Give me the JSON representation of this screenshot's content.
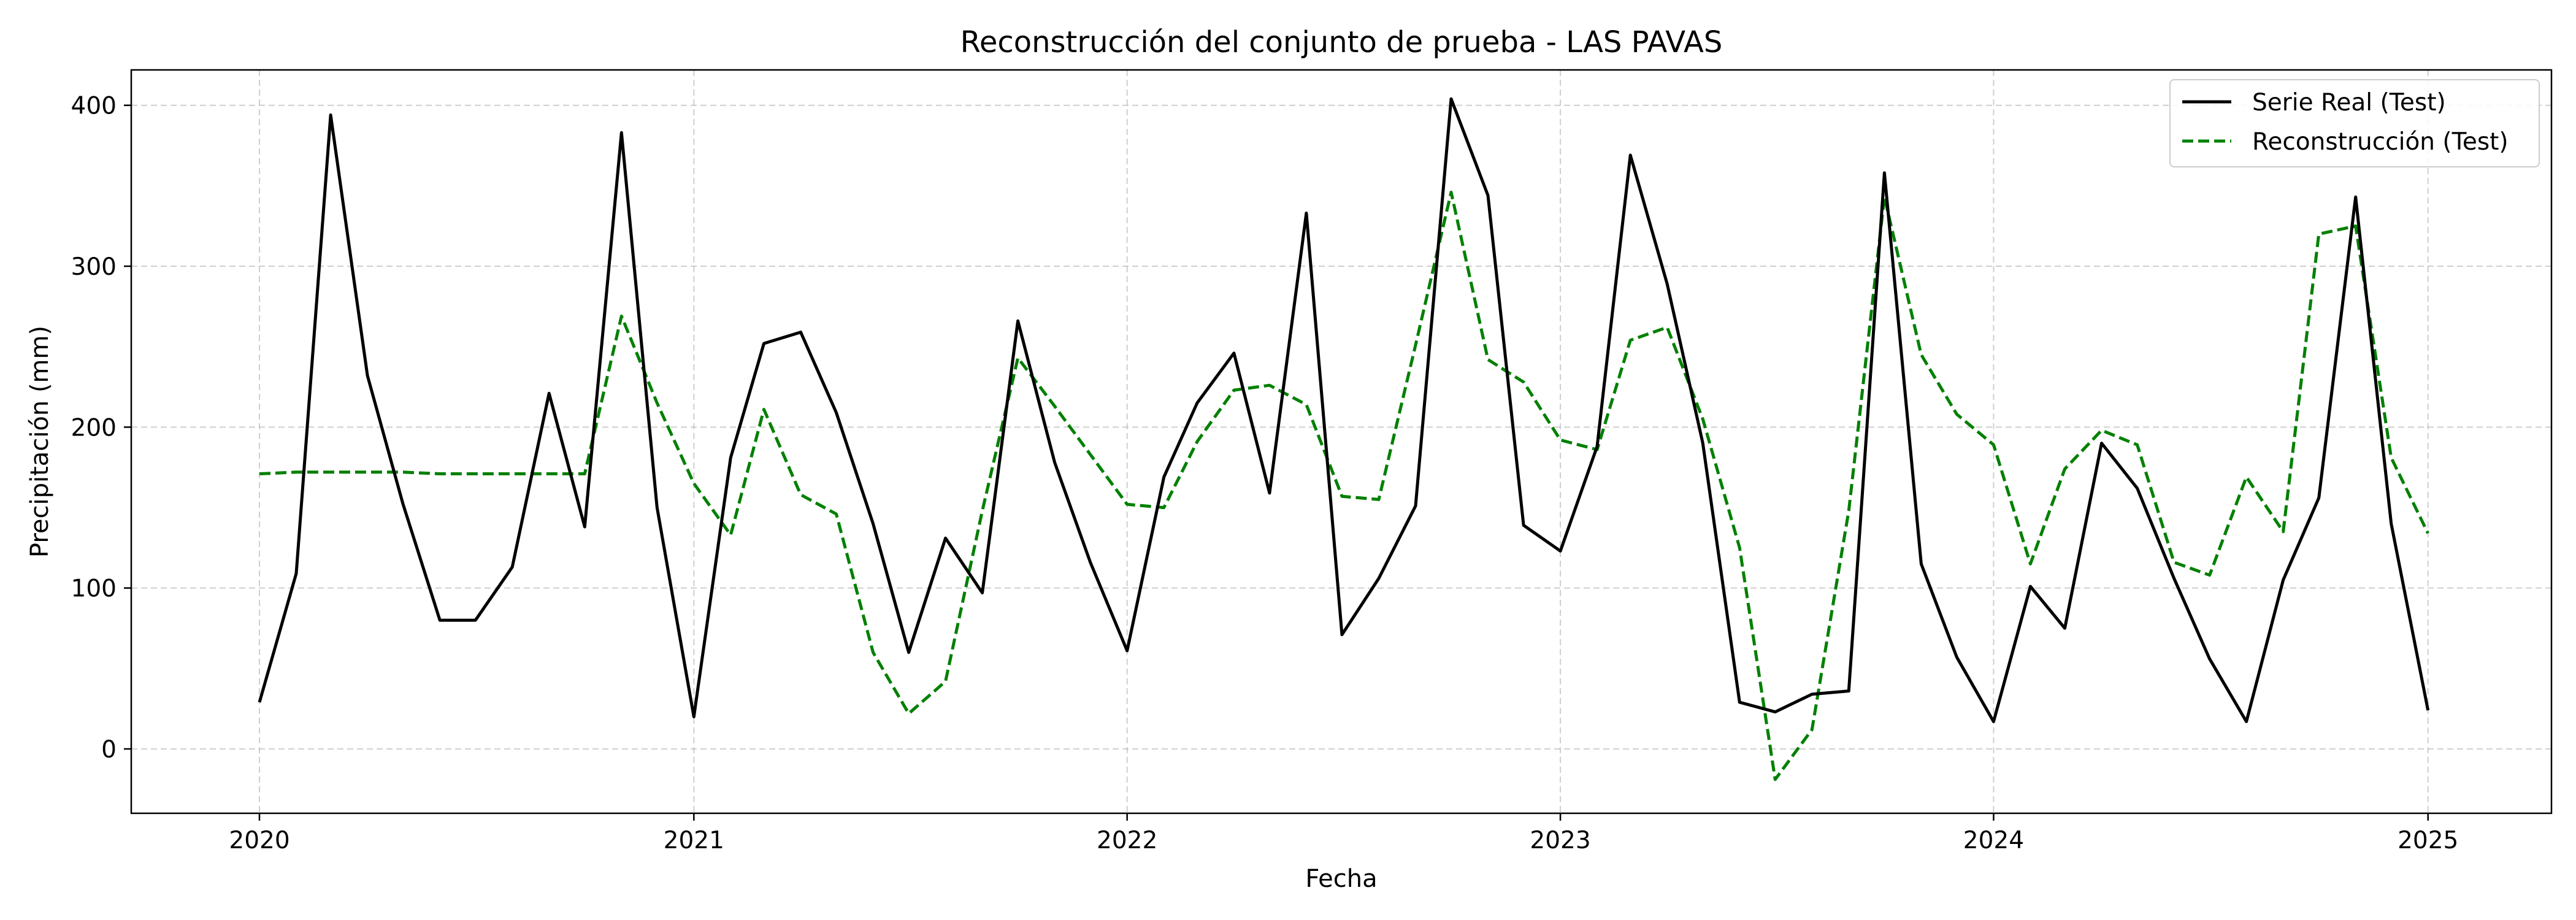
{
  "chart_data": {
    "type": "line",
    "title": "Reconstrucción del conjunto de prueba - LAS PAVAS",
    "xlabel": "Fecha",
    "ylabel": "Precipitación (mm)",
    "xlim": [
      "2019-09-15",
      "2025-04-15"
    ],
    "ylim": [
      -40,
      422
    ],
    "x_ticks": [
      {
        "date": "2020-01-01",
        "label": "2020"
      },
      {
        "date": "2021-01-01",
        "label": "2021"
      },
      {
        "date": "2022-01-01",
        "label": "2022"
      },
      {
        "date": "2023-01-01",
        "label": "2023"
      },
      {
        "date": "2024-01-01",
        "label": "2024"
      },
      {
        "date": "2025-01-01",
        "label": "2025"
      }
    ],
    "y_ticks": [
      0,
      100,
      200,
      300,
      400
    ],
    "grid": true,
    "legend_position": "top-right",
    "x": [
      "2020-01-01",
      "2020-02-01",
      "2020-03-01",
      "2020-04-01",
      "2020-05-01",
      "2020-06-01",
      "2020-07-01",
      "2020-08-01",
      "2020-09-01",
      "2020-10-01",
      "2020-11-01",
      "2020-12-01",
      "2021-01-01",
      "2021-02-01",
      "2021-03-01",
      "2021-04-01",
      "2021-05-01",
      "2021-06-01",
      "2021-07-01",
      "2021-08-01",
      "2021-09-01",
      "2021-10-01",
      "2021-11-01",
      "2021-12-01",
      "2022-01-01",
      "2022-02-01",
      "2022-03-01",
      "2022-04-01",
      "2022-05-01",
      "2022-06-01",
      "2022-07-01",
      "2022-08-01",
      "2022-09-01",
      "2022-10-01",
      "2022-11-01",
      "2022-12-01",
      "2023-01-01",
      "2023-02-01",
      "2023-03-01",
      "2023-04-01",
      "2023-05-01",
      "2023-06-01",
      "2023-07-01",
      "2023-08-01",
      "2023-09-01",
      "2023-10-01",
      "2023-11-01",
      "2023-12-01",
      "2024-01-01",
      "2024-02-01",
      "2024-03-01",
      "2024-04-01",
      "2024-05-01",
      "2024-06-01",
      "2024-07-01",
      "2024-08-01",
      "2024-09-01",
      "2024-10-01",
      "2024-11-01",
      "2024-12-01",
      "2025-01-01"
    ],
    "series": [
      {
        "name": "Serie Real (Test)",
        "color": "#000000",
        "style": "solid",
        "values": [
          29,
          109,
          394,
          232,
          152,
          80,
          80,
          113,
          221,
          138,
          383,
          150,
          20,
          181,
          252,
          259,
          209,
          140,
          60,
          131,
          97,
          266,
          178,
          116,
          61,
          169,
          215,
          246,
          159,
          333,
          71,
          106,
          151,
          404,
          344,
          139,
          123,
          188,
          369,
          289,
          190,
          29,
          23,
          34,
          36,
          358,
          115,
          57,
          17,
          101,
          75,
          190,
          162,
          106,
          56,
          17,
          105,
          156,
          343,
          140,
          24
        ]
      },
      {
        "name": "Reconstrucción (Test)",
        "color": "#008000",
        "style": "dashed",
        "values": [
          171,
          172,
          172,
          172,
          172,
          171,
          171,
          171,
          171,
          171,
          269,
          215,
          165,
          133,
          211,
          158,
          146,
          60,
          22,
          42,
          148,
          243,
          213,
          183,
          152,
          150,
          191,
          223,
          226,
          214,
          157,
          155,
          251,
          346,
          242,
          228,
          192,
          186,
          254,
          262,
          205,
          125,
          -19,
          12,
          148,
          343,
          245,
          208,
          189,
          115,
          174,
          198,
          189,
          116,
          108,
          169,
          135,
          320,
          325,
          181,
          134
        ]
      }
    ]
  }
}
